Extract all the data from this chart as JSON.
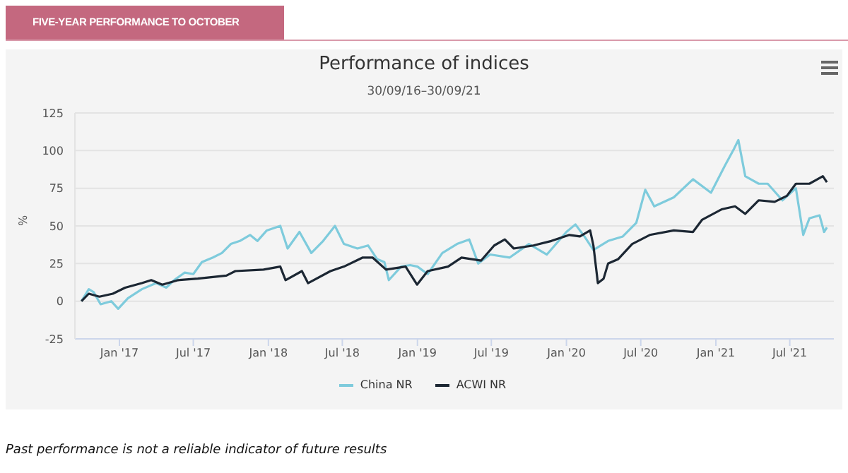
{
  "chart_data": {
    "type": "line",
    "title": "Performance of indices",
    "subtitle": "30/09/16–30/09/21",
    "ylabel": "%",
    "annotations": [
      "FIVE-YEAR PERFORMANCE TO OCTOBER",
      "Past performance is not a reliable indicator of future results"
    ],
    "xlim": [
      "2016-09-14",
      "2021-10-17"
    ],
    "xticks": [
      {
        "value": "2017-01-01",
        "label": "Jan '17"
      },
      {
        "value": "2017-07-01",
        "label": "Jul '17"
      },
      {
        "value": "2018-01-01",
        "label": "Jan '18"
      },
      {
        "value": "2018-07-01",
        "label": "Jul '18"
      },
      {
        "value": "2019-01-01",
        "label": "Jan '19"
      },
      {
        "value": "2019-07-01",
        "label": "Jul '19"
      },
      {
        "value": "2020-01-01",
        "label": "Jan '20"
      },
      {
        "value": "2020-07-01",
        "label": "Jul '20"
      },
      {
        "value": "2021-01-01",
        "label": "Jan '21"
      },
      {
        "value": "2021-07-01",
        "label": "Jul '21"
      }
    ],
    "ylim": [
      -25,
      125
    ],
    "yticks": [
      -25,
      0,
      25,
      50,
      75,
      100,
      125
    ],
    "grid": "y",
    "legend": "bottom",
    "series": [
      {
        "name": "China NR",
        "color": "#7ecbdc",
        "x": [
          "2016-09-30",
          "2016-10-18",
          "2016-10-30",
          "2016-11-16",
          "2016-12-12",
          "2016-12-29",
          "2017-01-22",
          "2017-02-25",
          "2017-04-01",
          "2017-04-26",
          "2017-05-15",
          "2017-06-10",
          "2017-07-01",
          "2017-07-22",
          "2017-08-18",
          "2017-09-09",
          "2017-10-01",
          "2017-10-23",
          "2017-11-17",
          "2017-12-05",
          "2017-12-28",
          "2018-01-30",
          "2018-02-17",
          "2018-03-18",
          "2018-04-16",
          "2018-05-15",
          "2018-06-13",
          "2018-07-05",
          "2018-08-07",
          "2018-09-02",
          "2018-09-24",
          "2018-10-12",
          "2018-10-23",
          "2018-11-22",
          "2018-12-14",
          "2019-01-01",
          "2019-01-26",
          "2019-03-03",
          "2019-04-08",
          "2019-05-08",
          "2019-05-30",
          "2019-06-28",
          "2019-08-15",
          "2019-10-01",
          "2019-11-14",
          "2020-01-01",
          "2020-01-23",
          "2020-02-14",
          "2020-03-07",
          "2020-04-12",
          "2020-05-18",
          "2020-06-20",
          "2020-07-12",
          "2020-08-03",
          "2020-09-20",
          "2020-11-06",
          "2020-12-20",
          "2021-01-23",
          "2021-02-14",
          "2021-02-25",
          "2021-03-14",
          "2021-04-16",
          "2021-05-08",
          "2021-06-13",
          "2021-07-16",
          "2021-08-03",
          "2021-08-18",
          "2021-09-12",
          "2021-09-23",
          "2021-09-30"
        ],
        "values": [
          0,
          8,
          6,
          -2,
          0,
          -5,
          2,
          8,
          12,
          9,
          14,
          19,
          18,
          26,
          29,
          32,
          38,
          40,
          44,
          40,
          47,
          50,
          35,
          46,
          32,
          40,
          50,
          38,
          35,
          37,
          28,
          26,
          14,
          23,
          24,
          23,
          18,
          32,
          38,
          41,
          25,
          31,
          29,
          38,
          31,
          46,
          51,
          43,
          34,
          40,
          43,
          52,
          74,
          63,
          69,
          81,
          72,
          90,
          101,
          107,
          83,
          78,
          78,
          67,
          75,
          44,
          55,
          57,
          46,
          49
        ]
      },
      {
        "name": "ACWI NR",
        "color": "#1c2733",
        "x": [
          "2016-09-30",
          "2016-10-18",
          "2016-11-13",
          "2016-12-16",
          "2017-01-15",
          "2017-02-25",
          "2017-03-20",
          "2017-04-16",
          "2017-05-25",
          "2017-07-12",
          "2017-09-20",
          "2017-10-12",
          "2017-12-20",
          "2018-01-30",
          "2018-02-12",
          "2018-03-24",
          "2018-04-08",
          "2018-06-02",
          "2018-07-05",
          "2018-08-20",
          "2018-09-13",
          "2018-10-16",
          "2018-12-03",
          "2018-12-31",
          "2019-01-26",
          "2019-03-17",
          "2019-04-19",
          "2019-06-06",
          "2019-07-08",
          "2019-08-03",
          "2019-08-25",
          "2019-10-12",
          "2019-11-25",
          "2020-01-08",
          "2020-02-03",
          "2020-02-28",
          "2020-03-07",
          "2020-03-18",
          "2020-04-01",
          "2020-04-12",
          "2020-05-07",
          "2020-06-10",
          "2020-07-23",
          "2020-09-20",
          "2020-11-06",
          "2020-11-28",
          "2021-01-15",
          "2021-02-17",
          "2021-03-14",
          "2021-04-16",
          "2021-05-25",
          "2021-06-24",
          "2021-07-16",
          "2021-08-18",
          "2021-09-20",
          "2021-09-30"
        ],
        "values": [
          0,
          5,
          3,
          5,
          9,
          12,
          14,
          11,
          14,
          15,
          17,
          20,
          21,
          23,
          14,
          20,
          12,
          20,
          23,
          29,
          29,
          21,
          23,
          11,
          20,
          23,
          29,
          27,
          37,
          41,
          35,
          37,
          40,
          44,
          43,
          47,
          37,
          12,
          15,
          25,
          28,
          38,
          44,
          47,
          46,
          54,
          61,
          63,
          58,
          67,
          66,
          70,
          78,
          78,
          83,
          79
        ]
      }
    ]
  }
}
